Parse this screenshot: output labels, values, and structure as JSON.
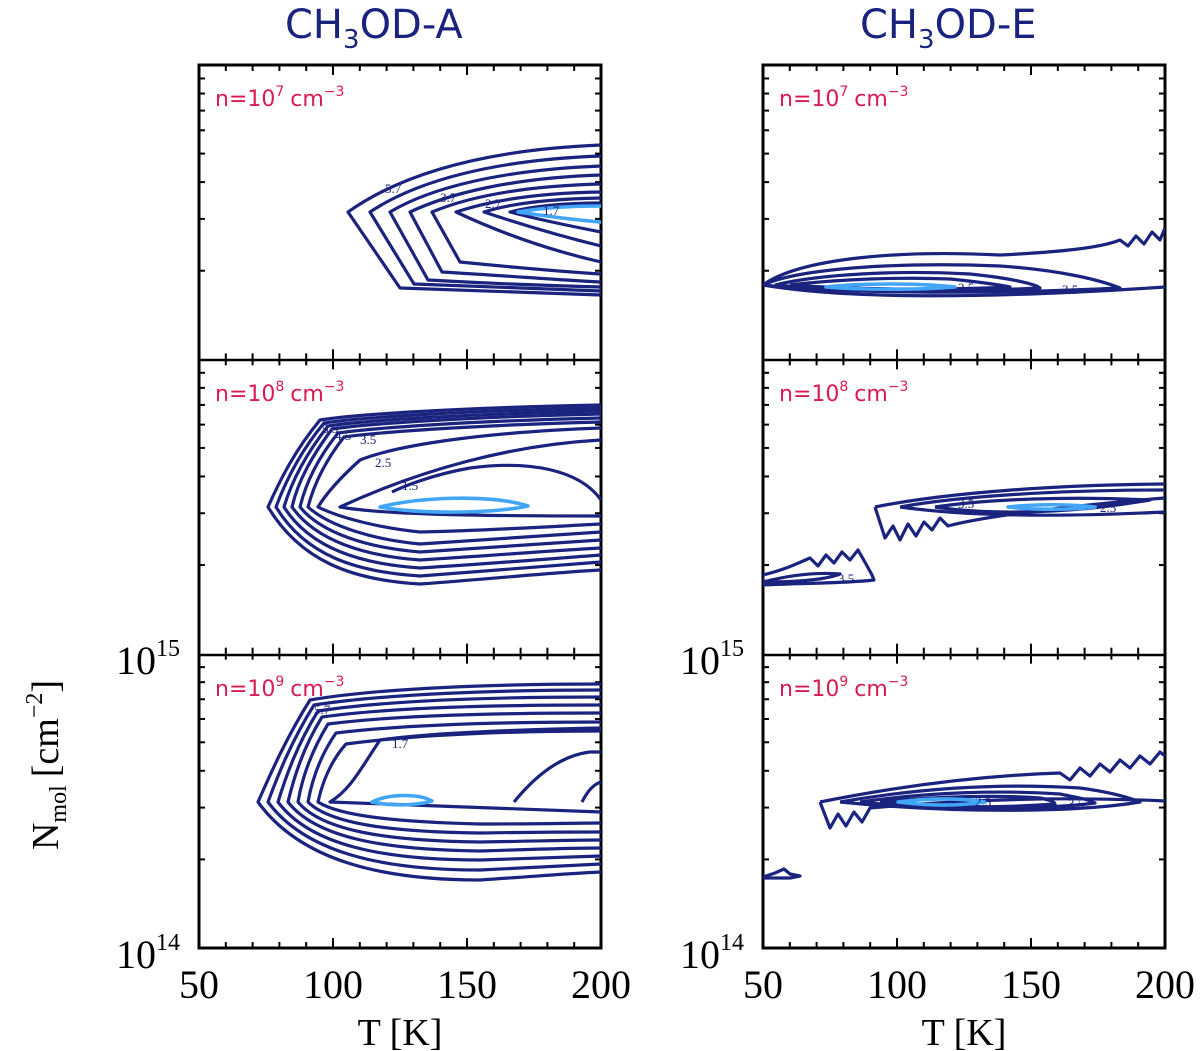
{
  "chart_data": [
    {
      "type": "contour",
      "column_title": "CH3OD-A",
      "column_title_main": "CH",
      "column_title_sub": "3",
      "column_title_rest": "OD-A",
      "xlabel": "T [K]",
      "ylabel": "N_mol [cm^-2]",
      "ylabel_main": "N",
      "ylabel_sub": "mol",
      "ylabel_unit": "[cm",
      "ylabel_exp": "−2",
      "ylabel_close": "]",
      "xlim": [
        50,
        200
      ],
      "xticks": [
        50,
        100,
        150,
        200
      ],
      "xtick_labels": [
        "50",
        "100",
        "150",
        "200"
      ],
      "ytick_labels": [
        {
          "base": "10",
          "exp": "15"
        },
        {
          "base": "10",
          "exp": "14"
        }
      ],
      "panels": [
        {
          "density_label": "n=10⁷ cm⁻³",
          "dens_pre": "n=10",
          "dens_exp": "7",
          "dens_unit": "cm",
          "dens_unit_exp": "−3",
          "contour_labels": [
            "5.7",
            "3.7",
            "2.7",
            "1.7"
          ]
        },
        {
          "density_label": "n=10⁸ cm⁻³",
          "dens_pre": "n=10",
          "dens_exp": "8",
          "dens_unit": "cm",
          "dens_unit_exp": "−3",
          "contour_labels": [
            "5.5",
            "4.5",
            "3.5",
            "2.5",
            "1.5"
          ]
        },
        {
          "density_label": "n=10⁹ cm⁻³",
          "dens_pre": "n=10",
          "dens_exp": "9",
          "dens_unit": "cm",
          "dens_unit_exp": "−3",
          "contour_labels": [
            "5.7",
            "1.7"
          ]
        }
      ]
    },
    {
      "type": "contour",
      "column_title": "CH3OD-E",
      "column_title_main": "CH",
      "column_title_sub": "3",
      "column_title_rest": "OD-E",
      "xlabel": "T [K]",
      "xlim": [
        50,
        200
      ],
      "xticks": [
        50,
        100,
        150,
        200
      ],
      "xtick_labels": [
        "50",
        "100",
        "150",
        "200"
      ],
      "ytick_labels": [
        {
          "base": "10",
          "exp": "15"
        },
        {
          "base": "10",
          "exp": "14"
        }
      ],
      "panels": [
        {
          "density_label": "n=10⁷ cm⁻³",
          "dens_pre": "n=10",
          "dens_exp": "7",
          "dens_unit": "cm",
          "dens_unit_exp": "−3",
          "contour_labels": [
            "2.5",
            "3.5"
          ]
        },
        {
          "density_label": "n=10⁸ cm⁻³",
          "dens_pre": "n=10",
          "dens_exp": "8",
          "dens_unit": "cm",
          "dens_unit_exp": "−3",
          "contour_labels": [
            "3.5",
            "2.5",
            "3.5"
          ]
        },
        {
          "density_label": "n=10⁹ cm⁻³",
          "dens_pre": "n=10",
          "dens_exp": "9",
          "dens_unit": "cm",
          "dens_unit_exp": "−3",
          "contour_labels": [
            "2.5",
            "3.5"
          ]
        }
      ]
    }
  ]
}
